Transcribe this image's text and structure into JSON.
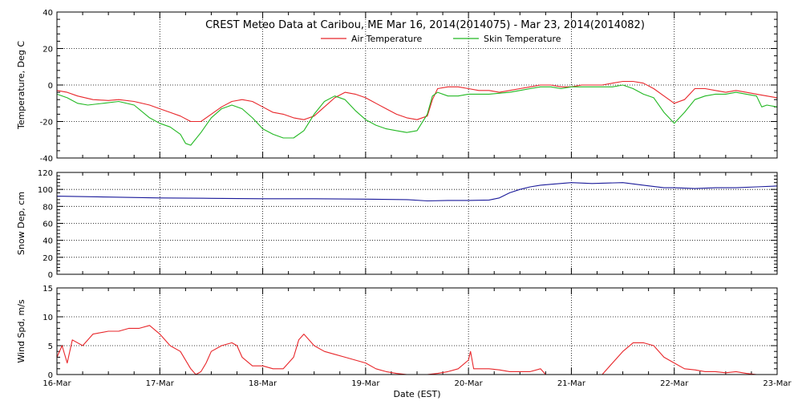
{
  "chart_data": [
    {
      "type": "line",
      "panel": "temperature",
      "title": "CREST Meteo Data at Caribou, ME   Mar 16, 2014(2014075) - Mar 23, 2014(2014082)",
      "ylabel": "Temperature, Deg C",
      "xlabel": "",
      "xlim": [
        0,
        7
      ],
      "ylim": [
        -40,
        40
      ],
      "yticks": [
        "-40",
        "-20",
        "0",
        "20",
        "40"
      ],
      "grid": true,
      "legend_position": "top-center",
      "series": [
        {
          "name": "Air Temperature",
          "color": "#e8262a",
          "points": [
            [
              0,
              -3
            ],
            [
              0.1,
              -4
            ],
            [
              0.2,
              -6
            ],
            [
              0.35,
              -8
            ],
            [
              0.5,
              -8.5
            ],
            [
              0.6,
              -8
            ],
            [
              0.75,
              -9
            ],
            [
              0.9,
              -11
            ],
            [
              1.0,
              -13
            ],
            [
              1.1,
              -15
            ],
            [
              1.2,
              -17
            ],
            [
              1.3,
              -20
            ],
            [
              1.4,
              -20
            ],
            [
              1.5,
              -16
            ],
            [
              1.6,
              -12
            ],
            [
              1.7,
              -9
            ],
            [
              1.8,
              -8
            ],
            [
              1.9,
              -9
            ],
            [
              2.0,
              -12
            ],
            [
              2.1,
              -15
            ],
            [
              2.2,
              -16
            ],
            [
              2.3,
              -18
            ],
            [
              2.4,
              -19
            ],
            [
              2.5,
              -17
            ],
            [
              2.6,
              -12
            ],
            [
              2.7,
              -7
            ],
            [
              2.8,
              -4
            ],
            [
              2.9,
              -5
            ],
            [
              3.0,
              -7
            ],
            [
              3.1,
              -10
            ],
            [
              3.2,
              -13
            ],
            [
              3.3,
              -16
            ],
            [
              3.4,
              -18
            ],
            [
              3.5,
              -19
            ],
            [
              3.6,
              -17
            ],
            [
              3.65,
              -8
            ],
            [
              3.7,
              -2
            ],
            [
              3.8,
              -1
            ],
            [
              3.9,
              -1
            ],
            [
              4.0,
              -2
            ],
            [
              4.1,
              -3
            ],
            [
              4.2,
              -3
            ],
            [
              4.3,
              -4
            ],
            [
              4.4,
              -3
            ],
            [
              4.5,
              -2
            ],
            [
              4.6,
              -1
            ],
            [
              4.7,
              0
            ],
            [
              4.8,
              0
            ],
            [
              4.9,
              -1
            ],
            [
              5.0,
              -1
            ],
            [
              5.1,
              0
            ],
            [
              5.2,
              0
            ],
            [
              5.3,
              0
            ],
            [
              5.4,
              1
            ],
            [
              5.5,
              2
            ],
            [
              5.6,
              2
            ],
            [
              5.7,
              1
            ],
            [
              5.8,
              -2
            ],
            [
              5.9,
              -6
            ],
            [
              6.0,
              -10
            ],
            [
              6.1,
              -8
            ],
            [
              6.2,
              -2
            ],
            [
              6.3,
              -2
            ],
            [
              6.4,
              -3
            ],
            [
              6.5,
              -4
            ],
            [
              6.6,
              -3
            ],
            [
              6.7,
              -4
            ],
            [
              6.8,
              -5
            ],
            [
              6.9,
              -6
            ],
            [
              7.0,
              -7
            ]
          ]
        },
        {
          "name": "Skin Temperature",
          "color": "#22b822",
          "points": [
            [
              0,
              -5
            ],
            [
              0.1,
              -7
            ],
            [
              0.2,
              -10
            ],
            [
              0.3,
              -11
            ],
            [
              0.45,
              -10
            ],
            [
              0.6,
              -9
            ],
            [
              0.75,
              -11
            ],
            [
              0.9,
              -18
            ],
            [
              1.0,
              -21
            ],
            [
              1.1,
              -23
            ],
            [
              1.2,
              -27
            ],
            [
              1.25,
              -32
            ],
            [
              1.3,
              -33
            ],
            [
              1.4,
              -26
            ],
            [
              1.5,
              -18
            ],
            [
              1.6,
              -13
            ],
            [
              1.7,
              -11
            ],
            [
              1.8,
              -13
            ],
            [
              1.9,
              -18
            ],
            [
              2.0,
              -24
            ],
            [
              2.1,
              -27
            ],
            [
              2.2,
              -29
            ],
            [
              2.3,
              -29
            ],
            [
              2.4,
              -25
            ],
            [
              2.5,
              -16
            ],
            [
              2.6,
              -9
            ],
            [
              2.7,
              -6
            ],
            [
              2.8,
              -8
            ],
            [
              2.9,
              -14
            ],
            [
              3.0,
              -19
            ],
            [
              3.1,
              -22
            ],
            [
              3.2,
              -24
            ],
            [
              3.3,
              -25
            ],
            [
              3.4,
              -26
            ],
            [
              3.5,
              -25
            ],
            [
              3.6,
              -16
            ],
            [
              3.65,
              -6
            ],
            [
              3.7,
              -4
            ],
            [
              3.8,
              -6
            ],
            [
              3.9,
              -6
            ],
            [
              4.0,
              -5
            ],
            [
              4.2,
              -5
            ],
            [
              4.4,
              -4
            ],
            [
              4.5,
              -3
            ],
            [
              4.6,
              -2
            ],
            [
              4.7,
              -1
            ],
            [
              4.8,
              -1
            ],
            [
              4.9,
              -2
            ],
            [
              5.0,
              -1
            ],
            [
              5.2,
              -1
            ],
            [
              5.4,
              -1
            ],
            [
              5.5,
              0
            ],
            [
              5.6,
              -2
            ],
            [
              5.7,
              -5
            ],
            [
              5.8,
              -7
            ],
            [
              5.9,
              -15
            ],
            [
              6.0,
              -21
            ],
            [
              6.1,
              -15
            ],
            [
              6.2,
              -8
            ],
            [
              6.3,
              -6
            ],
            [
              6.4,
              -5
            ],
            [
              6.5,
              -5
            ],
            [
              6.6,
              -4
            ],
            [
              6.7,
              -5
            ],
            [
              6.8,
              -6
            ],
            [
              6.85,
              -12
            ],
            [
              6.9,
              -11
            ],
            [
              7.0,
              -12
            ]
          ]
        }
      ]
    },
    {
      "type": "line",
      "panel": "snow-depth",
      "title": "",
      "ylabel": "Snow Dep, cm",
      "xlabel": "",
      "xlim": [
        0,
        7
      ],
      "ylim": [
        0,
        120
      ],
      "yticks": [
        "0",
        "20",
        "40",
        "60",
        "80",
        "100",
        "120"
      ],
      "grid": true,
      "series": [
        {
          "name": "",
          "color": "#1a1a9a",
          "points": [
            [
              0,
              92
            ],
            [
              0.5,
              91
            ],
            [
              1.0,
              90
            ],
            [
              1.5,
              89.5
            ],
            [
              2.0,
              89
            ],
            [
              2.5,
              89
            ],
            [
              3.0,
              88.5
            ],
            [
              3.4,
              88
            ],
            [
              3.6,
              86.5
            ],
            [
              3.8,
              87
            ],
            [
              4.0,
              87
            ],
            [
              4.2,
              87.5
            ],
            [
              4.3,
              90
            ],
            [
              4.4,
              96
            ],
            [
              4.5,
              100
            ],
            [
              4.6,
              103
            ],
            [
              4.7,
              105
            ],
            [
              4.8,
              106
            ],
            [
              5.0,
              108
            ],
            [
              5.2,
              107
            ],
            [
              5.5,
              108
            ],
            [
              5.7,
              105
            ],
            [
              5.9,
              102
            ],
            [
              6.0,
              102
            ],
            [
              6.2,
              101
            ],
            [
              6.4,
              102
            ],
            [
              6.6,
              102
            ],
            [
              6.8,
              103
            ],
            [
              7.0,
              104
            ]
          ]
        }
      ]
    },
    {
      "type": "line",
      "panel": "wind-speed",
      "title": "",
      "ylabel": "Wind Spd, m/s",
      "xlabel": "Date (EST)",
      "xlim": [
        0,
        7
      ],
      "ylim": [
        0,
        15
      ],
      "yticks": [
        "0",
        "5",
        "10",
        "15"
      ],
      "categories": [
        "16-Mar",
        "17-Mar",
        "18-Mar",
        "19-Mar",
        "20-Mar",
        "21-Mar",
        "22-Mar",
        "23-Mar"
      ],
      "grid": true,
      "series": [
        {
          "name": "",
          "color": "#e8262a",
          "points": [
            [
              0,
              3
            ],
            [
              0.05,
              5
            ],
            [
              0.1,
              2
            ],
            [
              0.15,
              6
            ],
            [
              0.25,
              5
            ],
            [
              0.35,
              7
            ],
            [
              0.5,
              7.5
            ],
            [
              0.6,
              7.5
            ],
            [
              0.7,
              8
            ],
            [
              0.8,
              8
            ],
            [
              0.9,
              8.5
            ],
            [
              1.0,
              7
            ],
            [
              1.05,
              6
            ],
            [
              1.1,
              5
            ],
            [
              1.2,
              4
            ],
            [
              1.3,
              1
            ],
            [
              1.35,
              0
            ],
            [
              1.4,
              0.5
            ],
            [
              1.45,
              2
            ],
            [
              1.5,
              4
            ],
            [
              1.6,
              5
            ],
            [
              1.7,
              5.5
            ],
            [
              1.75,
              5
            ],
            [
              1.8,
              3
            ],
            [
              1.9,
              1.5
            ],
            [
              2.0,
              1.5
            ],
            [
              2.1,
              1
            ],
            [
              2.2,
              1
            ],
            [
              2.3,
              3
            ],
            [
              2.35,
              6
            ],
            [
              2.4,
              7
            ],
            [
              2.5,
              5
            ],
            [
              2.6,
              4
            ],
            [
              2.7,
              3.5
            ],
            [
              2.8,
              3
            ],
            [
              2.9,
              2.5
            ],
            [
              3.0,
              2
            ],
            [
              3.1,
              1
            ],
            [
              3.2,
              0.5
            ],
            [
              3.3,
              0.2
            ],
            [
              3.4,
              0
            ],
            [
              3.5,
              0
            ],
            [
              3.6,
              0
            ],
            [
              3.7,
              0.2
            ],
            [
              3.8,
              0.5
            ],
            [
              3.9,
              1
            ],
            [
              4.0,
              2.5
            ],
            [
              4.02,
              4
            ],
            [
              4.05,
              1
            ],
            [
              4.2,
              1
            ],
            [
              4.3,
              0.8
            ],
            [
              4.4,
              0.5
            ],
            [
              4.5,
              0.5
            ],
            [
              4.6,
              0.5
            ],
            [
              4.7,
              1
            ],
            [
              4.75,
              0
            ],
            [
              4.8,
              0
            ],
            [
              5.0,
              0
            ],
            [
              5.3,
              0
            ],
            [
              5.4,
              2
            ],
            [
              5.5,
              4
            ],
            [
              5.6,
              5.5
            ],
            [
              5.7,
              5.5
            ],
            [
              5.8,
              5
            ],
            [
              5.9,
              3
            ],
            [
              6.0,
              2
            ],
            [
              6.1,
              1
            ],
            [
              6.2,
              0.8
            ],
            [
              6.3,
              0.5
            ],
            [
              6.4,
              0.5
            ],
            [
              6.5,
              0.3
            ],
            [
              6.6,
              0.5
            ],
            [
              6.7,
              0.2
            ],
            [
              6.8,
              0
            ],
            [
              7.0,
              0
            ]
          ]
        }
      ]
    }
  ]
}
